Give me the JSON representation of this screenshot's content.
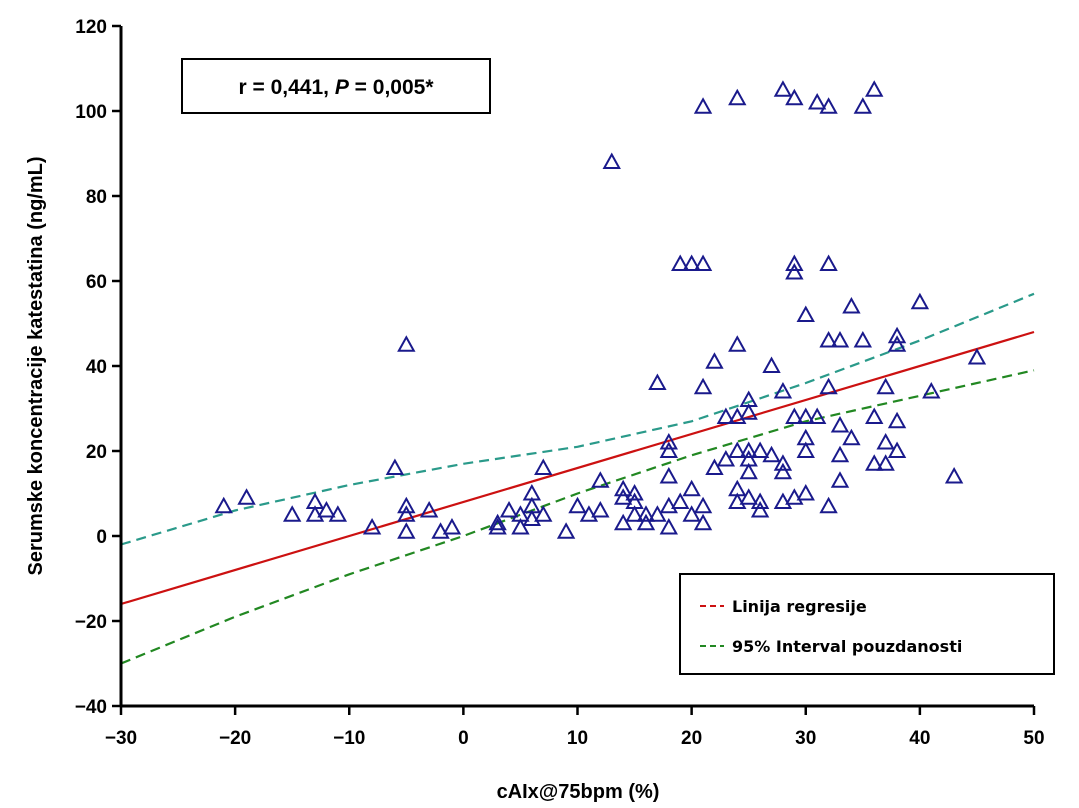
{
  "chart_data": {
    "type": "scatter",
    "title": "",
    "xlabel": "cAIx@75bpm (%)",
    "ylabel": "Serumske koncentracije katestatina (ng/mL)",
    "xlim": [
      -30,
      50
    ],
    "ylim": [
      -40,
      120
    ],
    "x_ticks": [
      -30,
      -20,
      -10,
      0,
      10,
      20,
      30,
      40,
      50
    ],
    "y_ticks": [
      -40,
      -20,
      0,
      20,
      40,
      60,
      80,
      100,
      120
    ],
    "x_tick_labels": [
      "−30",
      "−20",
      "−10",
      "0",
      "10",
      "20",
      "30",
      "40",
      "50"
    ],
    "y_tick_labels": [
      "−40",
      "−20",
      "0",
      "20",
      "40",
      "60",
      "80",
      "100",
      "120"
    ],
    "grid": false,
    "annotation": {
      "prefix": "r = 0,441, ",
      "p_symbol": "P",
      "suffix": " = 0,005*"
    },
    "legend": {
      "placement": "bottom-right",
      "entries": [
        {
          "label": "Linija regresije",
          "color": "#cc1111",
          "style": "dashed"
        },
        {
          "label": "95% Interval pouzdanosti",
          "color": "#228822",
          "style": "dashed"
        }
      ]
    },
    "marker": {
      "shape": "triangle",
      "color": "#1a1a8c"
    },
    "regression": {
      "color": "#cc1111",
      "x": [
        -30,
        50
      ],
      "y": [
        -16,
        48
      ]
    },
    "ci_upper": {
      "color": "#2a9a8a",
      "x": [
        -30,
        -20,
        -10,
        0,
        10,
        20,
        30,
        40,
        50
      ],
      "y": [
        -2,
        6,
        12,
        17,
        21,
        27,
        36,
        46,
        57
      ]
    },
    "ci_lower": {
      "color": "#228822",
      "x": [
        -30,
        -20,
        -10,
        0,
        10,
        20,
        30,
        40,
        50
      ],
      "y": [
        -30,
        -19,
        -9,
        0,
        10,
        19,
        27,
        33,
        39
      ]
    },
    "series": [
      {
        "points": [
          [
            -21,
            7
          ],
          [
            -19,
            9
          ],
          [
            -15,
            5
          ],
          [
            -13,
            8
          ],
          [
            -13,
            5
          ],
          [
            -12,
            6
          ],
          [
            -11,
            5
          ],
          [
            -8,
            2
          ],
          [
            -6,
            16
          ],
          [
            -5,
            45
          ],
          [
            -5,
            7
          ],
          [
            -5,
            5
          ],
          [
            -5,
            1
          ],
          [
            -3,
            6
          ],
          [
            -2,
            1
          ],
          [
            -1,
            2
          ],
          [
            3,
            2
          ],
          [
            3,
            3
          ],
          [
            4,
            6
          ],
          [
            5,
            2
          ],
          [
            5,
            5
          ],
          [
            6,
            10
          ],
          [
            6,
            7
          ],
          [
            6,
            4
          ],
          [
            7,
            16
          ],
          [
            7,
            5
          ],
          [
            9,
            1
          ],
          [
            10,
            7
          ],
          [
            11,
            5
          ],
          [
            12,
            13
          ],
          [
            12,
            6
          ],
          [
            13,
            88
          ],
          [
            14,
            11
          ],
          [
            14,
            9
          ],
          [
            14,
            3
          ],
          [
            15,
            10
          ],
          [
            15,
            8
          ],
          [
            15,
            5
          ],
          [
            16,
            5
          ],
          [
            16,
            3
          ],
          [
            17,
            36
          ],
          [
            17,
            5
          ],
          [
            18,
            22
          ],
          [
            18,
            20
          ],
          [
            18,
            14
          ],
          [
            18,
            7
          ],
          [
            18,
            2
          ],
          [
            19,
            64
          ],
          [
            19,
            8
          ],
          [
            20,
            64
          ],
          [
            20,
            11
          ],
          [
            20,
            5
          ],
          [
            21,
            101
          ],
          [
            21,
            64
          ],
          [
            21,
            35
          ],
          [
            21,
            7
          ],
          [
            21,
            3
          ],
          [
            22,
            41
          ],
          [
            22,
            16
          ],
          [
            23,
            28
          ],
          [
            23,
            18
          ],
          [
            24,
            103
          ],
          [
            24,
            45
          ],
          [
            24,
            28
          ],
          [
            24,
            20
          ],
          [
            24,
            11
          ],
          [
            24,
            8
          ],
          [
            25,
            32
          ],
          [
            25,
            29
          ],
          [
            25,
            20
          ],
          [
            25,
            18
          ],
          [
            25,
            15
          ],
          [
            25,
            9
          ],
          [
            26,
            6
          ],
          [
            26,
            8
          ],
          [
            26,
            20
          ],
          [
            27,
            40
          ],
          [
            27,
            19
          ],
          [
            28,
            105
          ],
          [
            28,
            34
          ],
          [
            28,
            17
          ],
          [
            28,
            15
          ],
          [
            28,
            8
          ],
          [
            29,
            103
          ],
          [
            29,
            64
          ],
          [
            29,
            62
          ],
          [
            29,
            28
          ],
          [
            29,
            9
          ],
          [
            30,
            52
          ],
          [
            30,
            28
          ],
          [
            30,
            23
          ],
          [
            30,
            20
          ],
          [
            30,
            10
          ],
          [
            31,
            102
          ],
          [
            31,
            28
          ],
          [
            32,
            101
          ],
          [
            32,
            64
          ],
          [
            32,
            46
          ],
          [
            32,
            35
          ],
          [
            32,
            7
          ],
          [
            33,
            46
          ],
          [
            33,
            26
          ],
          [
            33,
            19
          ],
          [
            33,
            13
          ],
          [
            34,
            54
          ],
          [
            34,
            23
          ],
          [
            35,
            101
          ],
          [
            35,
            46
          ],
          [
            36,
            105
          ],
          [
            36,
            28
          ],
          [
            36,
            17
          ],
          [
            37,
            35
          ],
          [
            37,
            22
          ],
          [
            37,
            17
          ],
          [
            38,
            47
          ],
          [
            38,
            45
          ],
          [
            38,
            27
          ],
          [
            38,
            20
          ],
          [
            40,
            55
          ],
          [
            41,
            34
          ],
          [
            43,
            14
          ],
          [
            45,
            42
          ]
        ]
      }
    ]
  }
}
